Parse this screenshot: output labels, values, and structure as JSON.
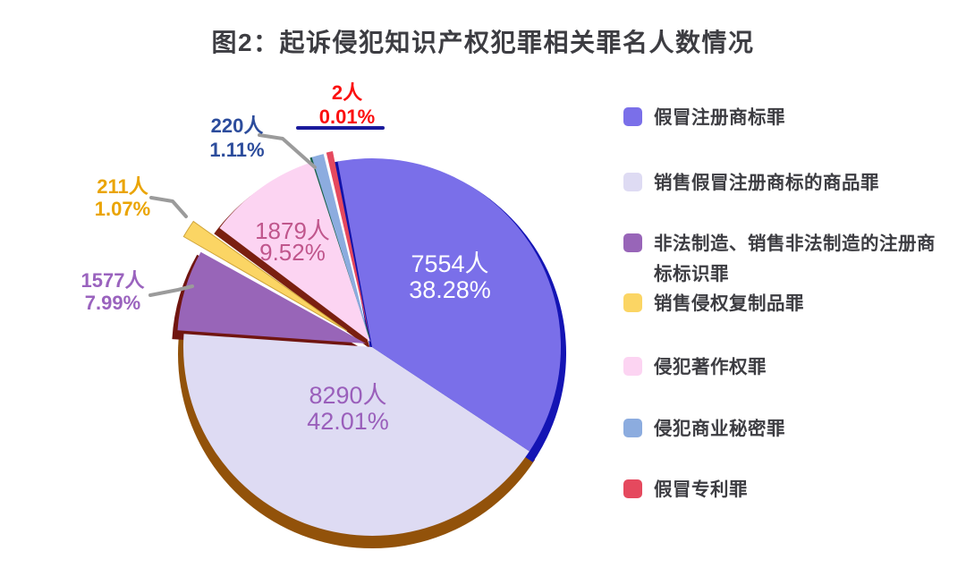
{
  "title": "图2：起诉侵犯知识产权犯罪相关罪名人数情况",
  "chart_data": {
    "type": "pie",
    "title": "图2：起诉侵犯知识产权犯罪相关罪名人数情况",
    "unit": "人",
    "direction": "clockwise",
    "start": "top",
    "legend_position": "right",
    "series": [
      {
        "name": "假冒注册商标罪",
        "value": 7554,
        "pct": 38.28,
        "label": "7554人",
        "pct_label": "38.28%",
        "color": "#7a6fe9",
        "label_color": "#ffffff"
      },
      {
        "name": "销售假冒注册商标的商品罪",
        "value": 8290,
        "pct": 42.01,
        "label": "8290人",
        "pct_label": "42.01%",
        "color": "#dedbf3",
        "label_color": "#9a5fbb"
      },
      {
        "name": "非法制造、销售非法制造的注册商标标识罪",
        "value": 1577,
        "pct": 7.99,
        "label": "1577人",
        "pct_label": "7.99%",
        "color": "#9865b8",
        "label_color": "#9a63be"
      },
      {
        "name": "销售侵权复制品罪",
        "value": 211,
        "pct": 1.07,
        "label": "211人",
        "pct_label": "1.07%",
        "color": "#fbd564",
        "label_color": "#eaa402"
      },
      {
        "name": "侵犯著作权罪",
        "value": 1879,
        "pct": 9.52,
        "label": "1879人",
        "pct_label": "9.52%",
        "color": "#fcd4f2",
        "label_color": "#c0568c"
      },
      {
        "name": "侵犯商业秘密罪",
        "value": 220,
        "pct": 1.11,
        "label": "220人",
        "pct_label": "1.11%",
        "color": "#8cacdf",
        "label_color": "#2c4c9c"
      },
      {
        "name": "假冒专利罪",
        "value": 2,
        "pct": 0.01,
        "label": "2人",
        "pct_label": "0.01%",
        "color": "#e5495e",
        "label_color": "#fb0f0f"
      }
    ]
  }
}
